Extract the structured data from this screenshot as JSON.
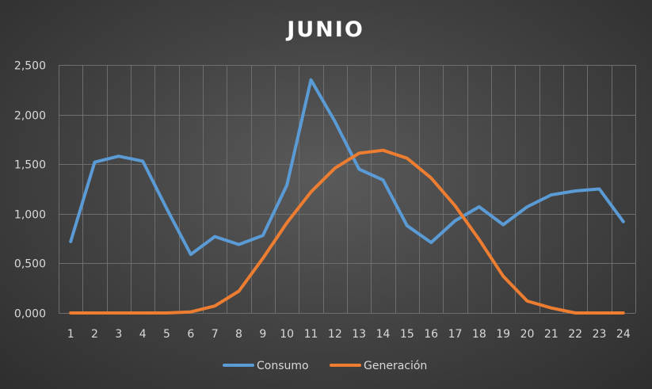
{
  "chart_data": {
    "type": "line",
    "title": "JUNIO",
    "categories": [
      "1",
      "2",
      "3",
      "4",
      "5",
      "6",
      "7",
      "8",
      "9",
      "10",
      "11",
      "12",
      "13",
      "14",
      "15",
      "16",
      "17",
      "18",
      "19",
      "20",
      "21",
      "22",
      "23",
      "24"
    ],
    "y_tick_labels": [
      "0,000",
      "0,500",
      "1,000",
      "1,500",
      "2,000",
      "2,500"
    ],
    "ylim": [
      0,
      2.5
    ],
    "grid": true,
    "legend_position": "bottom",
    "series": [
      {
        "name": "Consumo",
        "color": "#5b9bd5",
        "values": [
          0.72,
          1.52,
          1.58,
          1.53,
          1.05,
          0.59,
          0.77,
          0.69,
          0.78,
          1.29,
          2.35,
          1.93,
          1.45,
          1.34,
          0.88,
          0.71,
          0.93,
          1.07,
          0.89,
          1.07,
          1.19,
          1.23,
          1.25,
          0.92
        ]
      },
      {
        "name": "Generación",
        "color": "#ed7d31",
        "values": [
          0,
          0,
          0,
          0,
          0,
          0.01,
          0.07,
          0.22,
          0.55,
          0.91,
          1.22,
          1.46,
          1.61,
          1.64,
          1.56,
          1.36,
          1.08,
          0.74,
          0.37,
          0.12,
          0.05,
          0,
          0,
          0
        ]
      }
    ]
  }
}
